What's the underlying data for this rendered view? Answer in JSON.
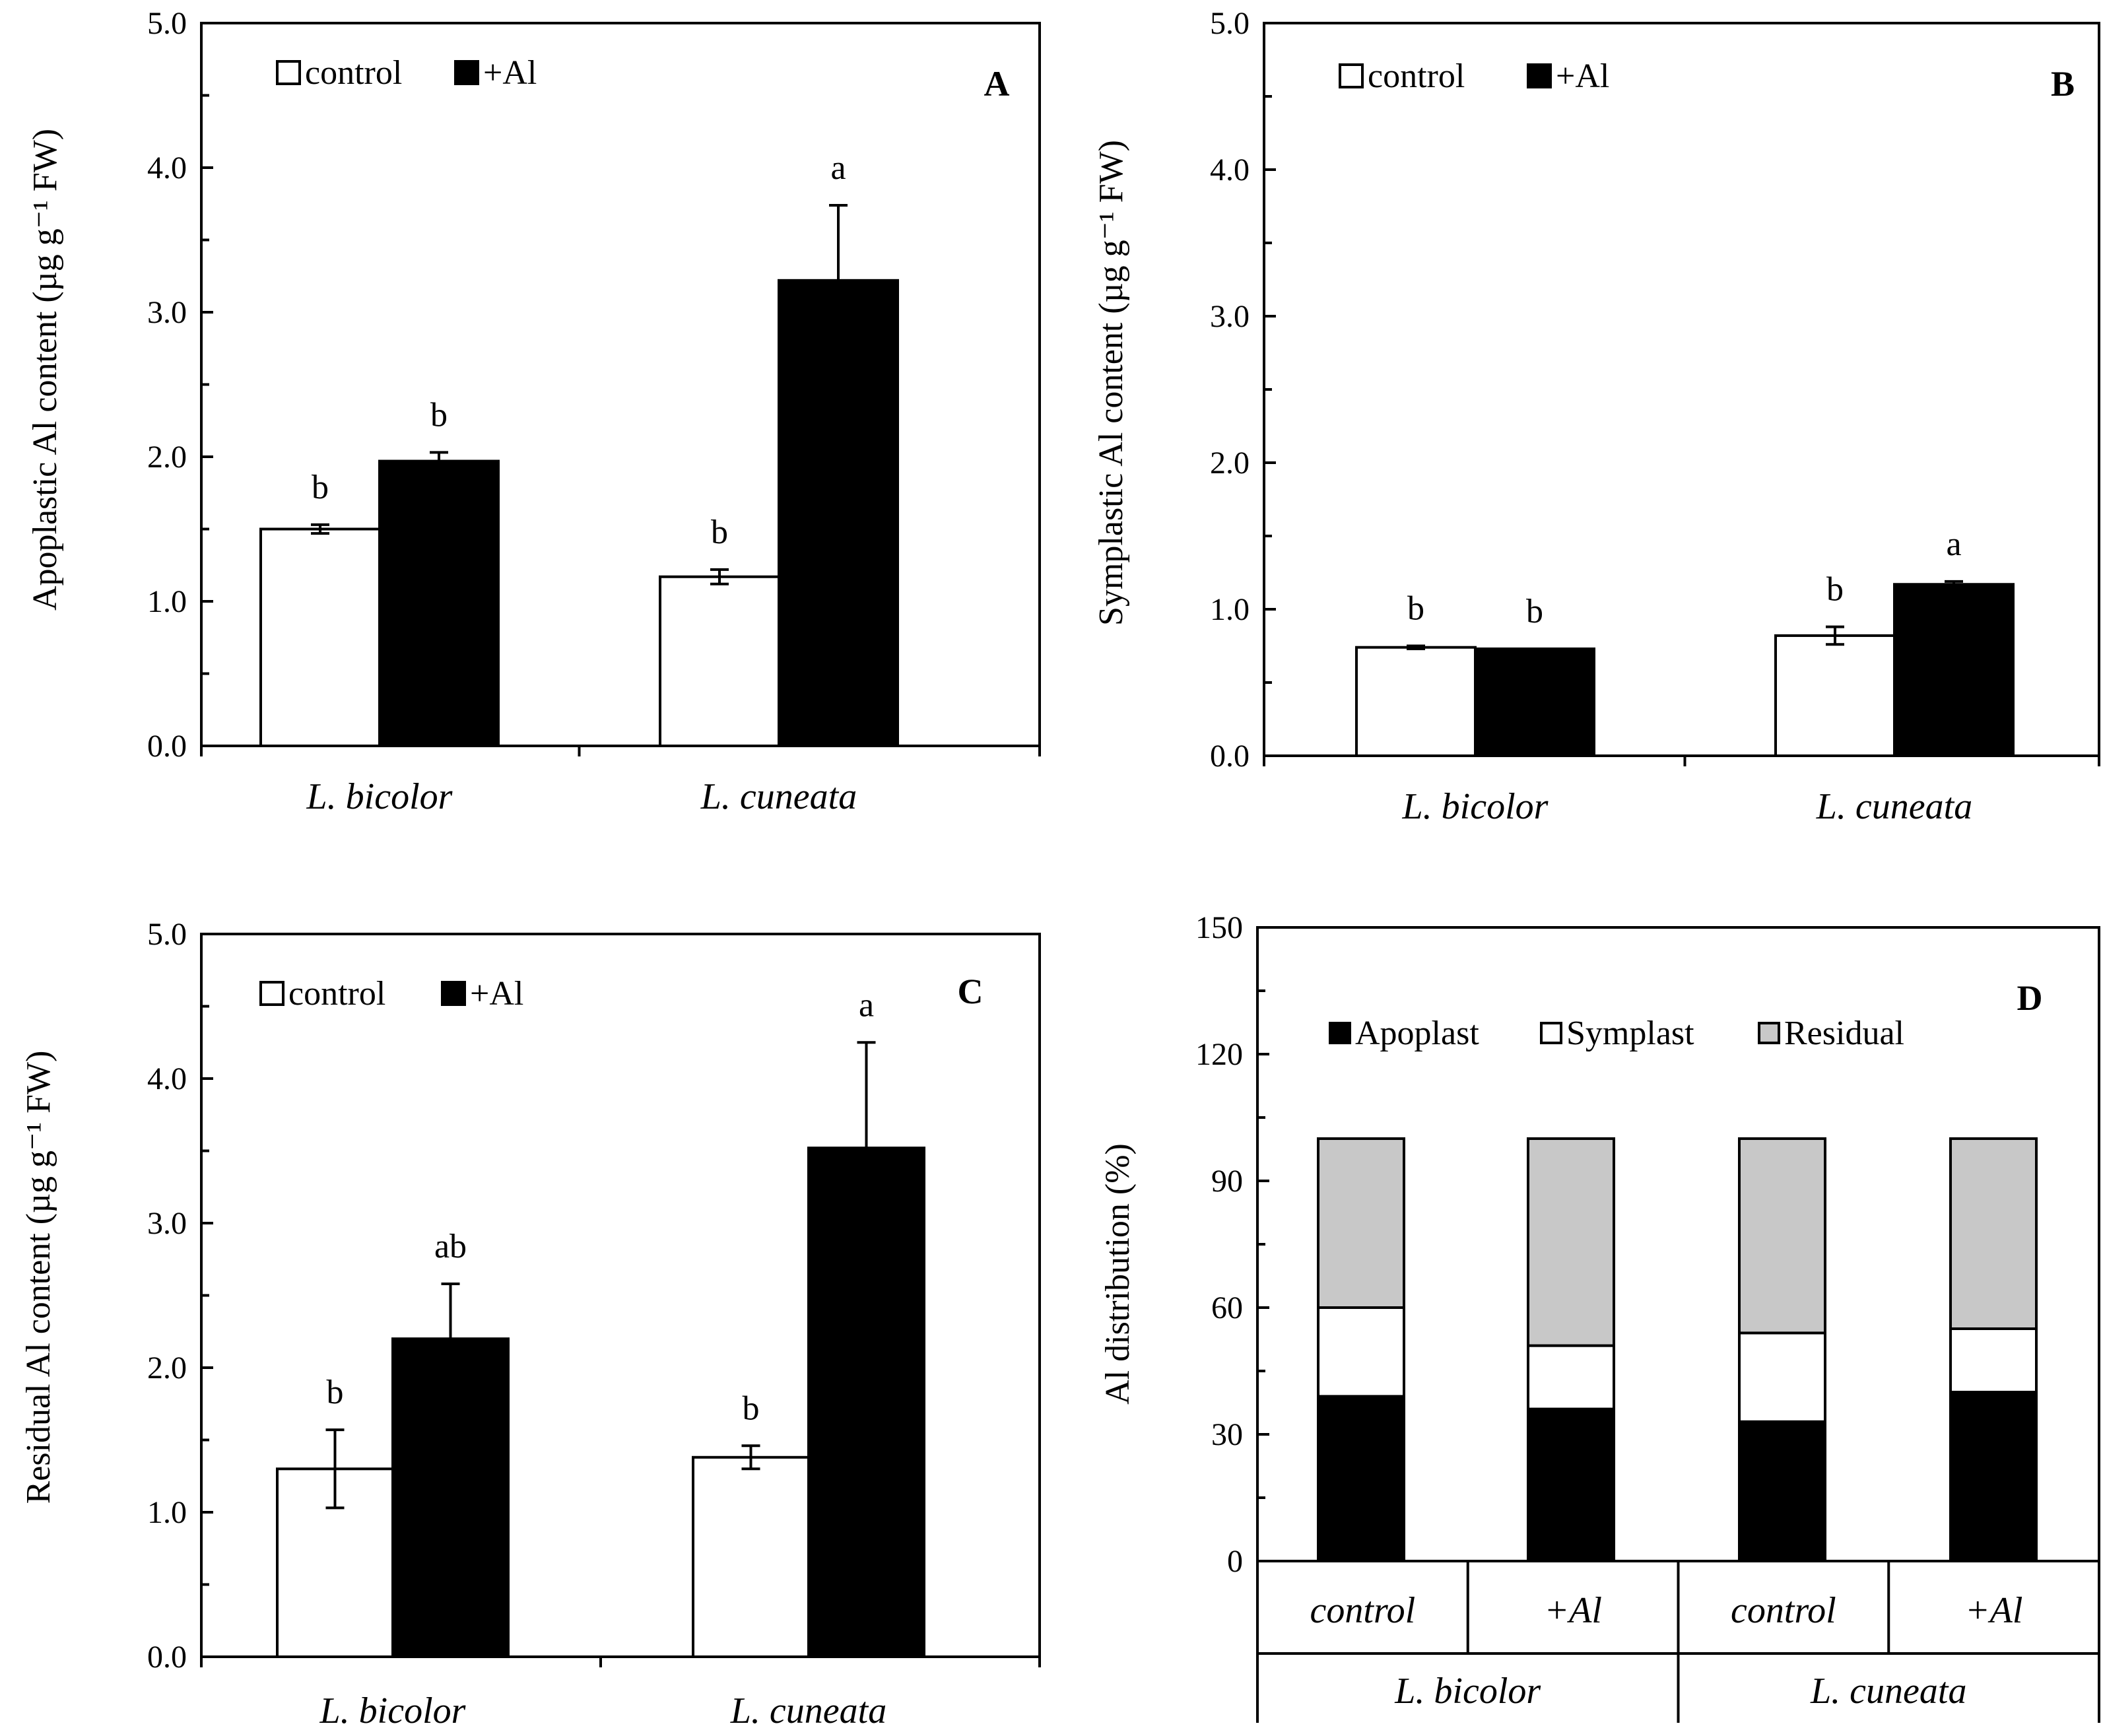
{
  "figure_description_none": "",
  "colors": {
    "control": "#ffffff",
    "al": "#000000",
    "apoplast": "#000000",
    "symplast": "#ffffff",
    "residual": "#c8c8c8",
    "axis": "#000000"
  },
  "chart_data": [
    {
      "panel": "A",
      "type": "bar",
      "ylabel": "Apoplastic Al content (µg g⁻¹ FW)",
      "ylim": [
        0,
        5
      ],
      "yticks": [
        "0.0",
        "1.0",
        "2.0",
        "3.0",
        "4.0",
        "5.0"
      ],
      "categories": [
        "L. bicolor",
        "L. cuneata"
      ],
      "legend": [
        "control",
        "+Al"
      ],
      "series": [
        {
          "name": "control",
          "values": [
            1.5,
            1.17
          ],
          "errors": [
            0.03,
            0.05
          ],
          "letters": [
            "b",
            "b"
          ]
        },
        {
          "name": "+Al",
          "values": [
            1.97,
            3.22
          ],
          "errors": [
            0.06,
            0.52
          ],
          "letters": [
            "b",
            "a"
          ]
        }
      ]
    },
    {
      "panel": "B",
      "type": "bar",
      "ylabel": "Symplastic Al content (µg g⁻¹ FW)",
      "ylim": [
        0,
        5
      ],
      "yticks": [
        "0.0",
        "1.0",
        "2.0",
        "3.0",
        "4.0",
        "5.0"
      ],
      "categories": [
        "L. bicolor",
        "L. cuneata"
      ],
      "legend": [
        "control",
        "+Al"
      ],
      "series": [
        {
          "name": "control",
          "values": [
            0.74,
            0.82
          ],
          "errors": [
            0.01,
            0.06
          ],
          "letters": [
            "b",
            "b"
          ]
        },
        {
          "name": "+Al",
          "values": [
            0.73,
            1.17
          ],
          "errors": [
            0.0,
            0.02
          ],
          "letters": [
            "b",
            "a"
          ]
        }
      ]
    },
    {
      "panel": "C",
      "type": "bar",
      "ylabel": "Residual Al content (µg g⁻¹ FW)",
      "ylim": [
        0,
        5
      ],
      "yticks": [
        "0.0",
        "1.0",
        "2.0",
        "3.0",
        "4.0",
        "5.0"
      ],
      "categories": [
        "L. bicolor",
        "L. cuneata"
      ],
      "legend": [
        "control",
        "+Al"
      ],
      "series": [
        {
          "name": "control",
          "values": [
            1.3,
            1.38
          ],
          "errors": [
            0.27,
            0.08
          ],
          "letters": [
            "b",
            "b"
          ]
        },
        {
          "name": "+Al",
          "values": [
            2.2,
            3.52
          ],
          "errors": [
            0.38,
            0.73
          ],
          "letters": [
            "ab",
            "a"
          ]
        }
      ]
    },
    {
      "panel": "D",
      "type": "bar",
      "stacked": true,
      "ylabel": "Al distribution (%)",
      "ylim": [
        0,
        150
      ],
      "yticks": [
        "0",
        "30",
        "60",
        "90",
        "120",
        "150"
      ],
      "categories": [
        "control",
        "+Al",
        "control",
        "+Al"
      ],
      "groups": [
        "L. bicolor",
        "L. cuneata"
      ],
      "legend": [
        "Apoplast",
        "Symplast",
        "Residual"
      ],
      "series": [
        {
          "name": "Apoplast",
          "values": [
            39,
            36,
            33,
            40
          ]
        },
        {
          "name": "Symplast",
          "values": [
            21,
            15,
            21,
            15
          ]
        },
        {
          "name": "Residual",
          "values": [
            40,
            49,
            46,
            45
          ]
        }
      ]
    }
  ]
}
